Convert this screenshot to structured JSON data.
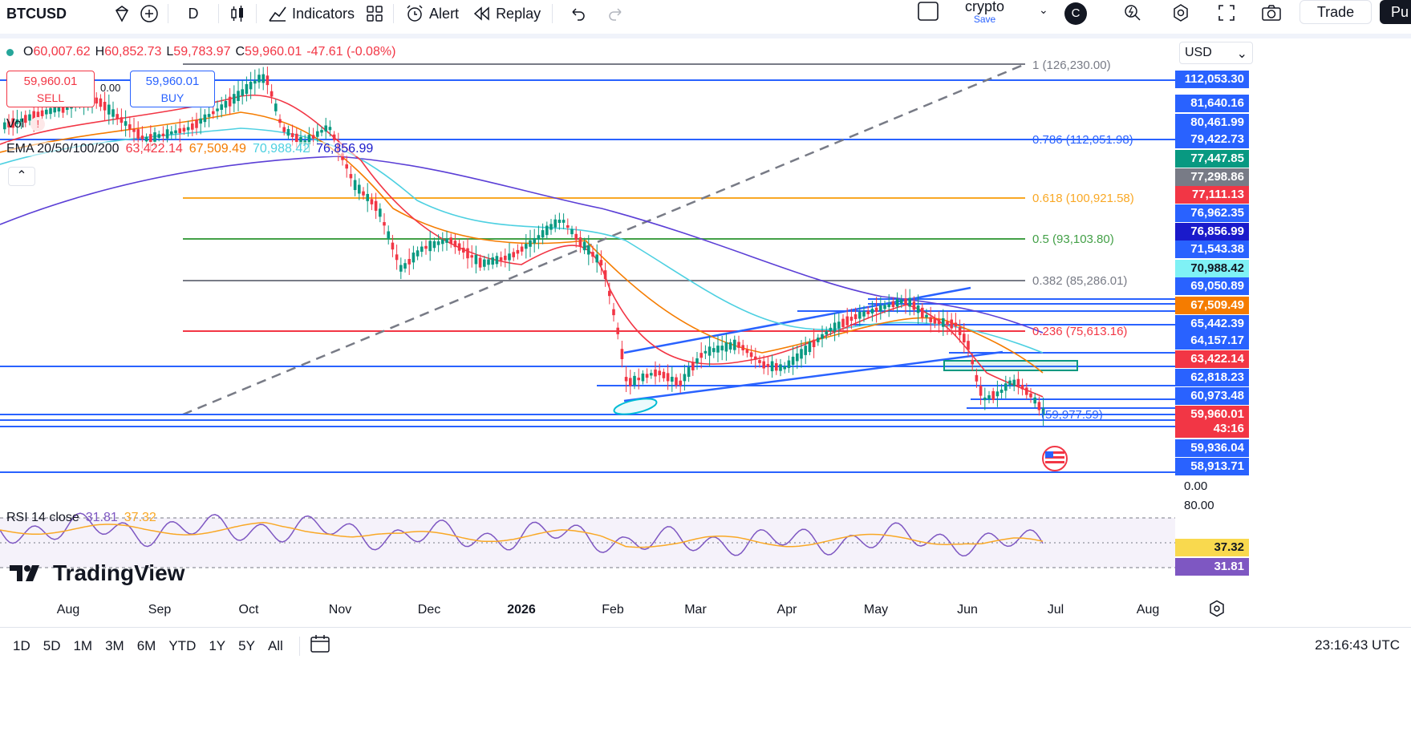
{
  "toolbar": {
    "symbol": "BTCUSD",
    "interval": "D",
    "indicators_label": "Indicators",
    "alert_label": "Alert",
    "replay_label": "Replay",
    "layout_name": "crypto",
    "layout_save": "Save",
    "avatar_letter": "C",
    "trade_label": "Trade",
    "publish_label": "Pu"
  },
  "legend": {
    "open_label": "O",
    "open": "60,007.62",
    "high_label": "H",
    "high": "60,852.73",
    "low_label": "L",
    "low": "59,783.97",
    "close_label": "C",
    "close": "59,960.01",
    "change": "-47.61 (-0.08%)",
    "sell_price": "59,960.01",
    "sell_label": "SELL",
    "buy_price": "59,960.01",
    "buy_label": "BUY",
    "spread": "0.00",
    "vol_label": "Vol",
    "ema_label": "EMA 20/50/100/200",
    "ema20": "63,422.14",
    "ema50": "67,509.49",
    "ema100": "70,988.42",
    "ema200": "76,856.99",
    "rsi_label": "RSI 14 close",
    "rsi": "31.81",
    "rsi_ma": "37.32"
  },
  "fib": [
    {
      "label": "1 (126,230.00)",
      "color": "#787b86"
    },
    {
      "label": "0.786 (112,051.98)",
      "color": "#2962ff"
    },
    {
      "label": "0.618 (100,921.58)",
      "color": "#f9a825"
    },
    {
      "label": "0.5 (93,103.80)",
      "color": "#43a047"
    },
    {
      "label": "0.382 (85,286.01)",
      "color": "#787b86"
    },
    {
      "label": "0.236 (75,613.16)",
      "color": "#f23645"
    },
    {
      "label": "(59,977.59)",
      "color": "#2962ff"
    }
  ],
  "price_axis": {
    "currency": "USD",
    "labels": [
      {
        "text": "112,053.30",
        "bg": "#2962ff"
      },
      {
        "text": "81,640.16",
        "bg": "#2962ff"
      },
      {
        "text": "80,461.99",
        "bg": "#2962ff"
      },
      {
        "text": "79,422.73",
        "bg": "#2962ff"
      },
      {
        "text": "77,447.85",
        "bg": "#089981"
      },
      {
        "text": "77,298.86",
        "bg": "#787b86"
      },
      {
        "text": "77,111.13",
        "bg": "#f23645"
      },
      {
        "text": "76,962.35",
        "bg": "#2962ff"
      },
      {
        "text": "76,856.99",
        "bg": "#1a1acb"
      },
      {
        "text": "71,543.38",
        "bg": "#2962ff"
      },
      {
        "text": "70,988.42",
        "bg": "#7ff1f5"
      },
      {
        "text": "69,050.89",
        "bg": "#2962ff"
      },
      {
        "text": "67,509.49",
        "bg": "#f57c00"
      },
      {
        "text": "65,442.39",
        "bg": "#2962ff"
      },
      {
        "text": "64,157.17",
        "bg": "#2962ff"
      },
      {
        "text": "63,422.14",
        "bg": "#f23645"
      },
      {
        "text": "62,818.23",
        "bg": "#2962ff"
      },
      {
        "text": "60,973.48",
        "bg": "#2962ff"
      },
      {
        "text": "59,960.01",
        "bg": "#f23645"
      },
      {
        "text": "43:16",
        "bg": "#f23645"
      },
      {
        "text": "59,936.04",
        "bg": "#2962ff"
      },
      {
        "text": "58,913.71",
        "bg": "#2962ff"
      }
    ],
    "vol_zero": "0.00",
    "rsi_80": "80.00",
    "rsi_ma_tag": "37.32",
    "rsi_tag": "31.81"
  },
  "time_axis": [
    "Aug",
    "Sep",
    "Oct",
    "Nov",
    "Dec",
    "2026",
    "Feb",
    "Mar",
    "Apr",
    "May",
    "Jun",
    "Jul",
    "Aug"
  ],
  "ranges": [
    "1D",
    "5D",
    "1M",
    "3M",
    "6M",
    "YTD",
    "1Y",
    "5Y",
    "All"
  ],
  "clock": "23:16:43 UTC",
  "brand": "TradingView",
  "colors": {
    "up": "#089981",
    "down": "#f23645",
    "fib_line": "#2962ff"
  }
}
